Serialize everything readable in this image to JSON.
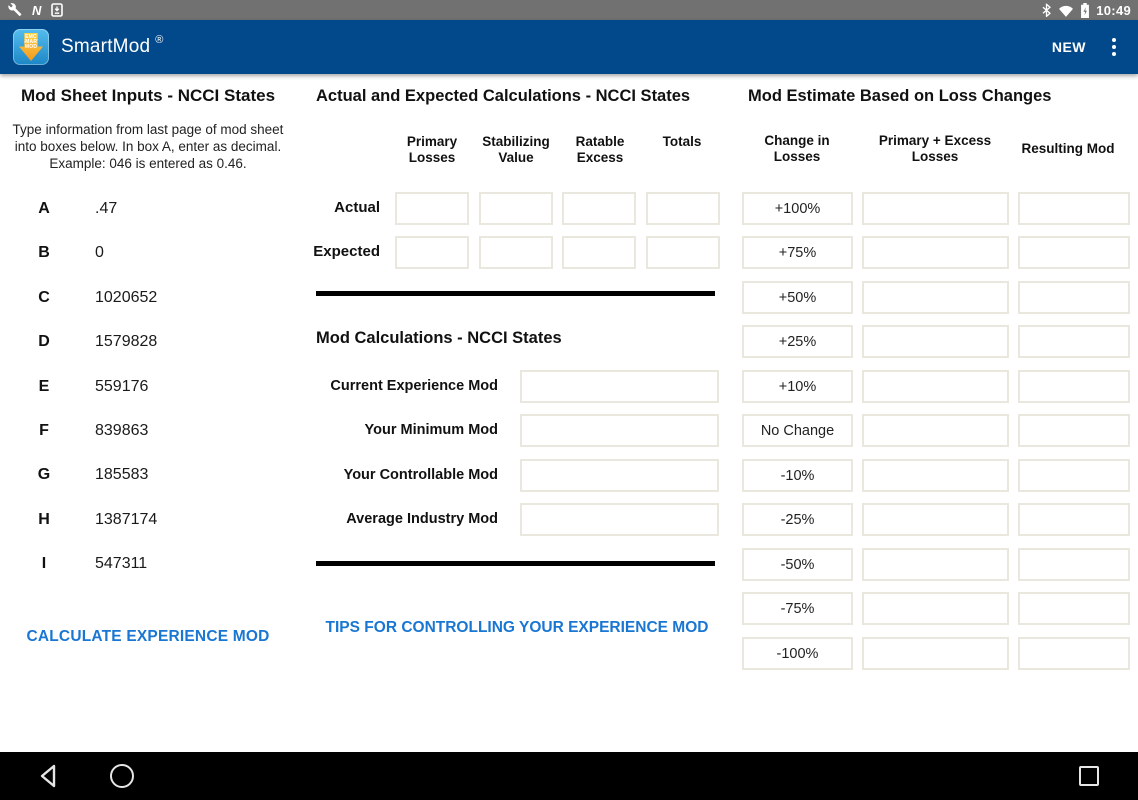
{
  "status_bar": {
    "time": "10:49",
    "left_icons": [
      "wrench-icon",
      "nfc-icon",
      "download-icon"
    ],
    "right_icons": [
      "bluetooth-icon",
      "wifi-icon",
      "battery-charging-icon"
    ]
  },
  "app_bar": {
    "title": "SmartMod",
    "registered_mark": "®",
    "logo_lines": [
      "EMC",
      "SMART",
      "MOD"
    ],
    "action_new": "NEW"
  },
  "left_panel": {
    "title": "Mod Sheet Inputs - NCCI States",
    "instructions": "Type information from last page of mod sheet into boxes below. In box A, enter as decimal. Example: 046 is entered as 0.46.",
    "inputs": [
      {
        "label": "A",
        "value": ".47"
      },
      {
        "label": "B",
        "value": "0"
      },
      {
        "label": "C",
        "value": "1020652"
      },
      {
        "label": "D",
        "value": "1579828"
      },
      {
        "label": "E",
        "value": "559176"
      },
      {
        "label": "F",
        "value": "839863"
      },
      {
        "label": "G",
        "value": "185583"
      },
      {
        "label": "H",
        "value": "1387174"
      },
      {
        "label": "I",
        "value": "547311"
      }
    ],
    "calculate_button": "CALCULATE EXPERIENCE MOD"
  },
  "middle_panel": {
    "title": "Actual and Expected Calculations - NCCI States",
    "column_headers": [
      "Primary\nLosses",
      "Stabilizing\nValue",
      "Ratable\nExcess",
      "Totals"
    ],
    "rows": [
      {
        "label": "Actual",
        "values": [
          "",
          "",
          "",
          ""
        ]
      },
      {
        "label": "Expected",
        "values": [
          "",
          "",
          "",
          ""
        ]
      }
    ],
    "mod_calculations": {
      "title": "Mod Calculations - NCCI States",
      "fields": [
        {
          "label": "Current Experience Mod",
          "value": ""
        },
        {
          "label": "Your Minimum Mod",
          "value": ""
        },
        {
          "label": "Your Controllable Mod",
          "value": ""
        },
        {
          "label": "Average Industry Mod",
          "value": ""
        }
      ]
    },
    "tips_link": "TIPS FOR CONTROLLING YOUR EXPERIENCE MOD"
  },
  "right_panel": {
    "title": "Mod Estimate Based on Loss Changes",
    "column_headers": [
      "Change in\nLosses",
      "Primary + Excess\nLosses",
      "Resulting Mod"
    ],
    "rows": [
      {
        "change": "+100%",
        "losses": "",
        "resulting_mod": ""
      },
      {
        "change": "+75%",
        "losses": "",
        "resulting_mod": ""
      },
      {
        "change": "+50%",
        "losses": "",
        "resulting_mod": ""
      },
      {
        "change": "+25%",
        "losses": "",
        "resulting_mod": ""
      },
      {
        "change": "+10%",
        "losses": "",
        "resulting_mod": ""
      },
      {
        "change": "No Change",
        "losses": "",
        "resulting_mod": ""
      },
      {
        "change": "-10%",
        "losses": "",
        "resulting_mod": ""
      },
      {
        "change": "-25%",
        "losses": "",
        "resulting_mod": ""
      },
      {
        "change": "-50%",
        "losses": "",
        "resulting_mod": ""
      },
      {
        "change": "-75%",
        "losses": "",
        "resulting_mod": ""
      },
      {
        "change": "-100%",
        "losses": "",
        "resulting_mod": ""
      }
    ]
  },
  "nav_bar": {
    "icons": [
      "back-icon",
      "home-icon",
      "recents-icon"
    ]
  },
  "colors": {
    "status_bar": "#717171",
    "app_bar": "#01498a",
    "link_blue": "#1976d2",
    "box_border": "#eae7df",
    "divider": "#000000",
    "nav_bar": "#000000"
  }
}
